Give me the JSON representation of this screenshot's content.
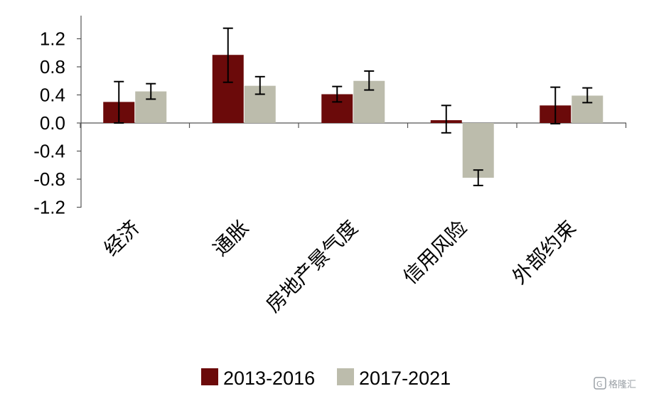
{
  "chart_data": {
    "type": "bar",
    "categories": [
      "经济",
      "通胀",
      "房地产景气度",
      "信用风险",
      "外部约束"
    ],
    "series": [
      {
        "name": "2013-2016",
        "color": "#6b0a0a",
        "values": [
          0.3,
          0.97,
          0.41,
          0.04,
          0.25
        ],
        "error_low": [
          0.0,
          0.58,
          0.3,
          -0.14,
          -0.01
        ],
        "error_high": [
          0.59,
          1.35,
          0.52,
          0.25,
          0.51
        ]
      },
      {
        "name": "2017-2021",
        "color": "#bcbcac",
        "values": [
          0.45,
          0.53,
          0.6,
          -0.78,
          0.39
        ],
        "error_low": [
          0.34,
          0.41,
          0.47,
          -0.89,
          0.29
        ],
        "error_high": [
          0.56,
          0.66,
          0.74,
          -0.67,
          0.5
        ]
      }
    ],
    "y_ticks": [
      "1.2",
      "0.8",
      "0.4",
      "0.0",
      "-0.4",
      "-0.8",
      "-1.2"
    ],
    "ylim": [
      -1.2,
      1.45
    ],
    "legend_position": "bottom"
  },
  "watermark": {
    "text": "格隆汇",
    "icon": "watermark-logo-icon"
  }
}
